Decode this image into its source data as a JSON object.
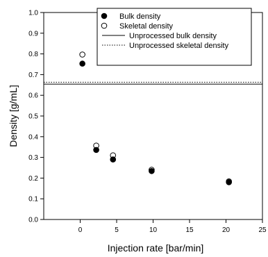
{
  "chart_data": {
    "type": "scatter",
    "xlabel": "Injection rate [bar/min]",
    "ylabel": "Density [g/mL]",
    "xlim": [
      -5,
      25
    ],
    "ylim": [
      0,
      1.0
    ],
    "xticks": [
      0,
      5,
      10,
      15,
      20,
      25
    ],
    "xtick_labels": [
      "0",
      "5",
      "10",
      "15",
      "20",
      "25"
    ],
    "yticks": [
      0,
      0.1,
      0.2,
      0.3,
      0.4,
      0.5,
      0.6,
      0.7,
      0.8,
      0.9,
      1.0
    ],
    "ytick_labels": [
      "0.0",
      "0.1",
      "0.2",
      "0.3",
      "0.4",
      "0.5",
      "0.6",
      "0.7",
      "0.8",
      "0.9",
      "1.0"
    ],
    "grid": false,
    "legend_position": "top-right",
    "series": [
      {
        "name": "Bulk density",
        "marker": "filled-circle",
        "x": [
          0.3,
          2.2,
          4.5,
          9.8,
          20.4
        ],
        "y": [
          0.753,
          0.336,
          0.29,
          0.234,
          0.18
        ]
      },
      {
        "name": "Skeletal density",
        "marker": "open-circle",
        "x": [
          0.3,
          2.2,
          4.5,
          9.8,
          20.4
        ],
        "y": [
          0.797,
          0.357,
          0.31,
          0.24,
          0.184
        ]
      }
    ],
    "reference_lines": [
      {
        "name": "Unprocessed bulk density",
        "style": "solid",
        "y": 0.654
      },
      {
        "name": "Unprocessed skeletal density",
        "style": "dotted",
        "y": 0.663
      }
    ]
  }
}
